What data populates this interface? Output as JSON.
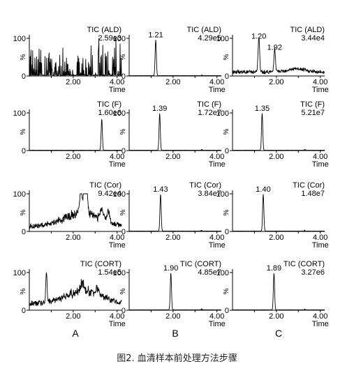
{
  "figure_caption": "图2. 血清样本前处理方法步骤",
  "chart_data": {
    "type": "line",
    "title": "",
    "column_labels": [
      "A",
      "B",
      "C"
    ],
    "rows": [
      {
        "trace": "TIC (ALD)",
        "panels": [
          {
            "intensity": "2.59e3",
            "peaks": [],
            "style": "noisy-spikes"
          },
          {
            "intensity": "4.29e5",
            "peaks": [
              {
                "x": 1.21,
                "label": "1.21",
                "height": 0.95
              }
            ],
            "style": "single-peak"
          },
          {
            "intensity": "3.44e4",
            "peaks": [
              {
                "x": 1.2,
                "label": "1.20",
                "height": 0.92
              },
              {
                "x": 1.92,
                "label": "1.92",
                "height": 0.62
              }
            ],
            "style": "noisy-peaks"
          }
        ]
      },
      {
        "trace": "TIC (F)",
        "panels": [
          {
            "intensity": "1.60e6",
            "peaks": [
              {
                "x": 3.3,
                "label": "",
                "height": 0.82
              }
            ],
            "style": "single-peak"
          },
          {
            "intensity": "1.72e7",
            "peaks": [
              {
                "x": 1.39,
                "label": "1.39",
                "height": 0.98
              }
            ],
            "style": "single-peak"
          },
          {
            "intensity": "5.21e7",
            "peaks": [
              {
                "x": 1.35,
                "label": "1.35",
                "height": 0.98
              }
            ],
            "style": "single-peak"
          }
        ]
      },
      {
        "trace": "TIC (Cor)",
        "panels": [
          {
            "intensity": "9.42e4",
            "peaks": [],
            "style": "noisy-hump"
          },
          {
            "intensity": "3.84e7",
            "peaks": [
              {
                "x": 1.43,
                "label": "1.43",
                "height": 0.98
              }
            ],
            "style": "single-peak"
          },
          {
            "intensity": "1.48e7",
            "peaks": [
              {
                "x": 1.4,
                "label": "1.40",
                "height": 0.98
              }
            ],
            "style": "single-peak"
          }
        ]
      },
      {
        "trace": "TIC (CORT)",
        "panels": [
          {
            "intensity": "1.54e5",
            "peaks": [],
            "style": "noisy-hump2"
          },
          {
            "intensity": "4.85e7",
            "peaks": [
              {
                "x": 1.9,
                "label": "1.90",
                "height": 0.98
              }
            ],
            "style": "single-peak"
          },
          {
            "intensity": "3.27e6",
            "peaks": [
              {
                "x": 1.89,
                "label": "1.89",
                "height": 0.98
              }
            ],
            "style": "single-peak"
          }
        ]
      }
    ],
    "xlabel": "Time",
    "ylabel": "%",
    "xlim": [
      0,
      4.2
    ],
    "xticks": [
      "2.00",
      "4.00"
    ],
    "ylim": [
      0,
      100
    ],
    "ytick_labels": [
      "100",
      "0"
    ]
  }
}
